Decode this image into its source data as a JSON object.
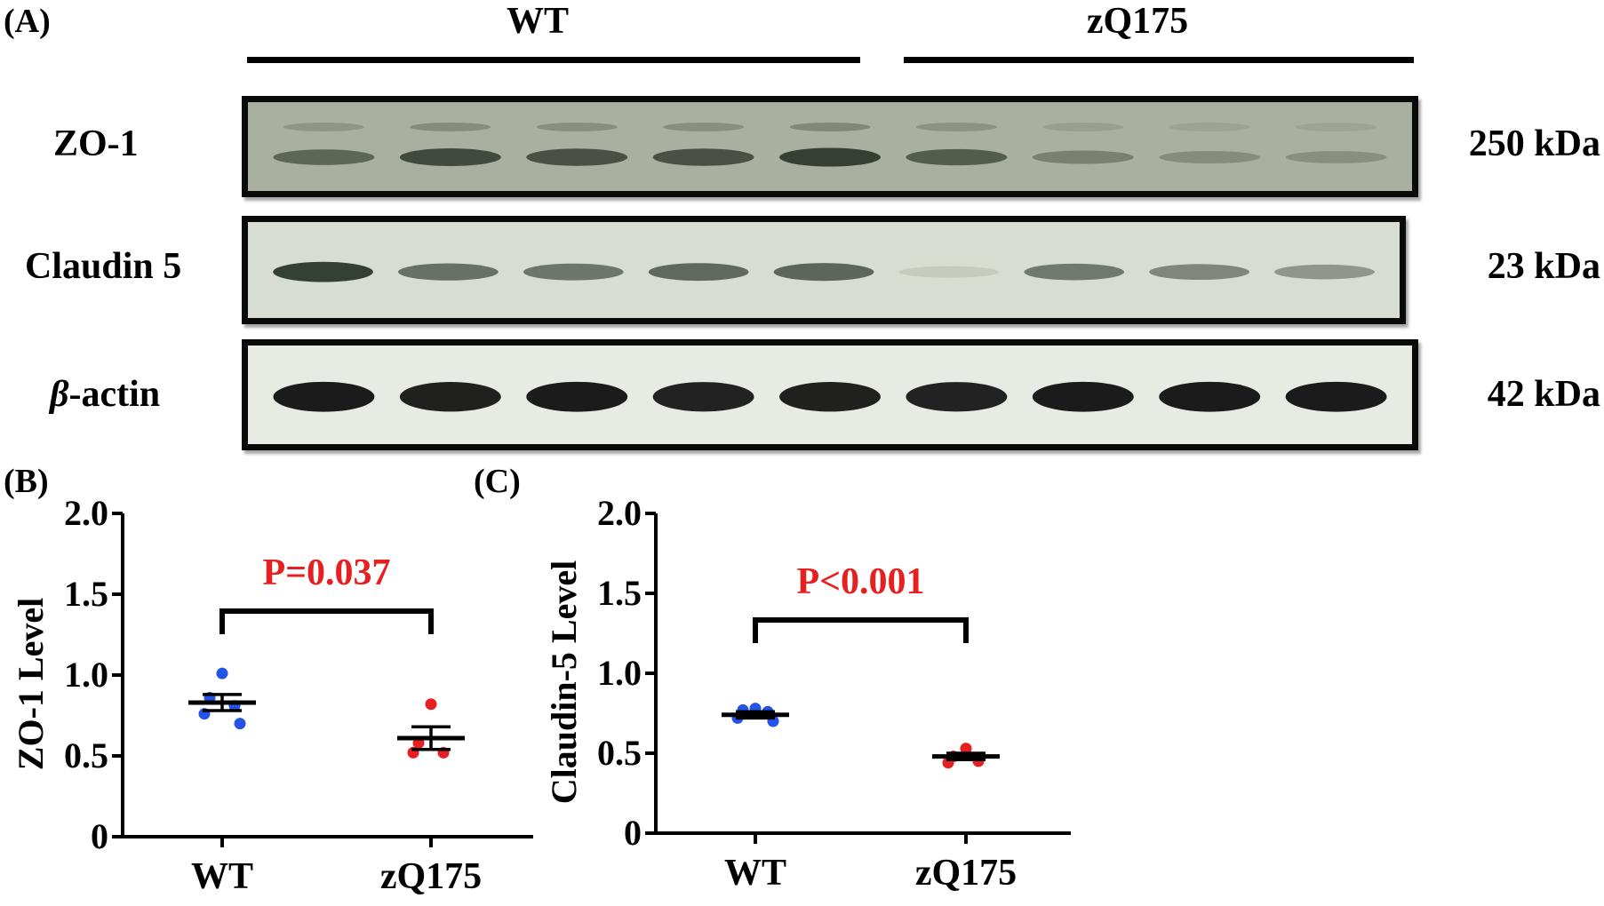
{
  "panels": {
    "a": "(A)",
    "b": "(B)",
    "c": "(C)"
  },
  "groups": [
    "WT",
    "zQ175"
  ],
  "blot_rows": [
    {
      "label_main": "ZO-1",
      "label_italic": "",
      "kda": "250 kDa",
      "bg": "#a9b09f",
      "band": "#2f3a2c",
      "intensities": [
        0.62,
        0.85,
        0.8,
        0.8,
        0.95,
        0.7,
        0.4,
        0.3,
        0.28
      ]
    },
    {
      "label_main": "Claudin 5",
      "label_italic": "",
      "kda": "23 kDa",
      "bg": "#d7ddd0",
      "band": "#2c372c",
      "intensities": [
        0.95,
        0.65,
        0.62,
        0.7,
        0.72,
        0.1,
        0.6,
        0.52,
        0.42
      ]
    },
    {
      "label_main": "-actin",
      "label_italic": "β",
      "kda": "42 kDa",
      "bg": "#e7ebe4",
      "band": "#101010",
      "intensities": [
        0.95,
        0.93,
        0.95,
        0.92,
        0.93,
        0.92,
        0.95,
        0.95,
        0.95
      ]
    }
  ],
  "chart_data": [
    {
      "type": "scatter",
      "title": "",
      "ylabel": "ZO-1 Level",
      "xlabel": "",
      "categories": [
        "WT",
        "zQ175"
      ],
      "ylim": [
        0,
        2.0
      ],
      "yticks": [
        "0",
        "0.5",
        "1.0",
        "1.5",
        "2.0"
      ],
      "series": [
        {
          "values": [
            1.01,
            0.86,
            0.81,
            0.76,
            0.7
          ],
          "mean": 0.83,
          "sem": 0.05,
          "color": "#2255e6"
        },
        {
          "values": [
            0.82,
            0.58,
            0.52,
            0.52
          ],
          "mean": 0.61,
          "sem": 0.07,
          "color": "#e62020"
        }
      ],
      "annotation": "P=0.037",
      "annotation_color": "#e62020"
    },
    {
      "type": "scatter",
      "title": "",
      "ylabel": "Claudin-5 Level",
      "xlabel": "",
      "categories": [
        "WT",
        "zQ175"
      ],
      "ylim": [
        0,
        2.0
      ],
      "yticks": [
        "0",
        "0.5",
        "1.0",
        "1.5",
        "2.0"
      ],
      "series": [
        {
          "values": [
            0.78,
            0.77,
            0.76,
            0.72,
            0.7
          ],
          "mean": 0.74,
          "sem": 0.02,
          "color": "#2255e6"
        },
        {
          "values": [
            0.53,
            0.48,
            0.45,
            0.44
          ],
          "mean": 0.48,
          "sem": 0.02,
          "color": "#e62020"
        }
      ],
      "annotation": "P<0.001",
      "annotation_color": "#e62020"
    }
  ]
}
